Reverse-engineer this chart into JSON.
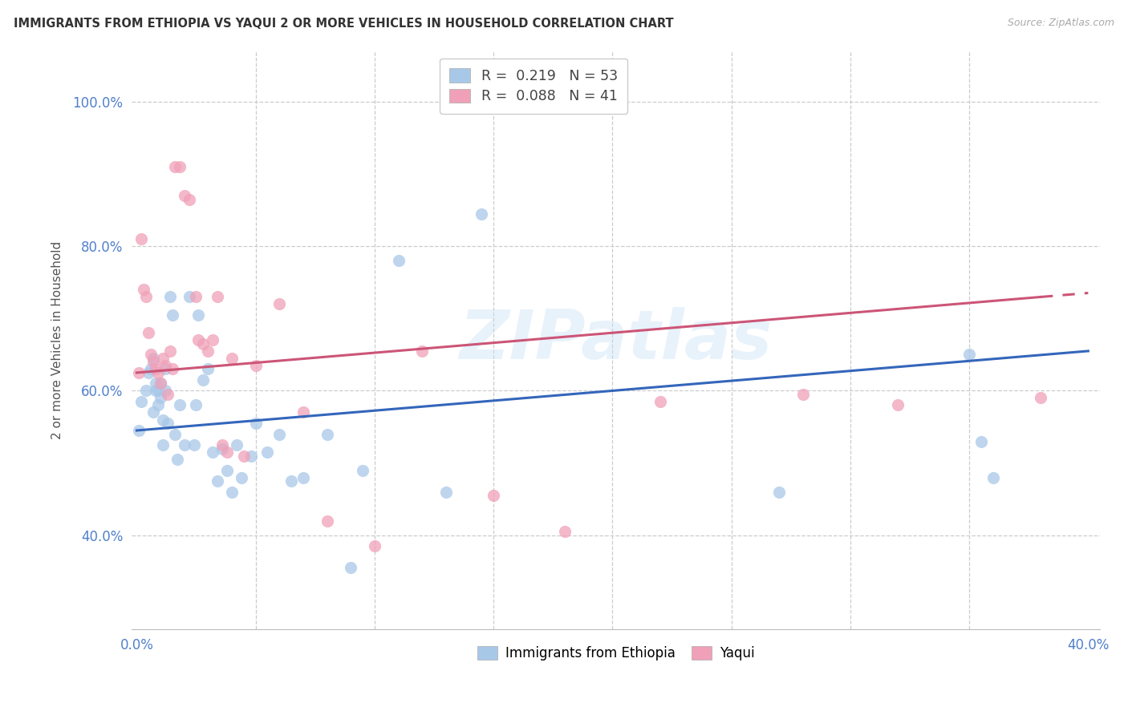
{
  "title": "IMMIGRANTS FROM ETHIOPIA VS YAQUI 2 OR MORE VEHICLES IN HOUSEHOLD CORRELATION CHART",
  "source": "Source: ZipAtlas.com",
  "ylabel": "2 or more Vehicles in Household",
  "xlim": [
    -0.002,
    0.405
  ],
  "ylim": [
    0.27,
    1.07
  ],
  "yticks": [
    0.4,
    0.6,
    0.8,
    1.0
  ],
  "xtick_positions": [
    0.0,
    0.4
  ],
  "xtick_labels": [
    "0.0%",
    "40.0%"
  ],
  "ytick_labels": [
    "40.0%",
    "60.0%",
    "80.0%",
    "100.0%"
  ],
  "label1": "Immigrants from Ethiopia",
  "label2": "Yaqui",
  "blue_color": "#a8c8e8",
  "pink_color": "#f0a0b8",
  "blue_line_color": "#3366bb",
  "pink_line_color": "#cc5577",
  "watermark": "ZIPatlas",
  "vertical_grid_x": [
    0.05,
    0.1,
    0.15,
    0.2,
    0.25,
    0.3,
    0.35
  ],
  "ethiopia_x": [
    0.001,
    0.002,
    0.004,
    0.005,
    0.006,
    0.007,
    0.007,
    0.008,
    0.008,
    0.009,
    0.009,
    0.01,
    0.01,
    0.011,
    0.011,
    0.012,
    0.012,
    0.013,
    0.014,
    0.015,
    0.016,
    0.017,
    0.018,
    0.02,
    0.022,
    0.024,
    0.025,
    0.026,
    0.028,
    0.03,
    0.032,
    0.034,
    0.036,
    0.038,
    0.04,
    0.042,
    0.044,
    0.048,
    0.05,
    0.055,
    0.06,
    0.065,
    0.07,
    0.08,
    0.09,
    0.095,
    0.11,
    0.13,
    0.145,
    0.27,
    0.35,
    0.355,
    0.36
  ],
  "ethiopia_y": [
    0.545,
    0.585,
    0.6,
    0.625,
    0.63,
    0.57,
    0.645,
    0.61,
    0.6,
    0.58,
    0.6,
    0.59,
    0.61,
    0.56,
    0.525,
    0.63,
    0.6,
    0.555,
    0.73,
    0.705,
    0.54,
    0.505,
    0.58,
    0.525,
    0.73,
    0.525,
    0.58,
    0.705,
    0.615,
    0.63,
    0.515,
    0.475,
    0.52,
    0.49,
    0.46,
    0.525,
    0.48,
    0.51,
    0.555,
    0.515,
    0.54,
    0.475,
    0.48,
    0.54,
    0.355,
    0.49,
    0.78,
    0.46,
    0.845,
    0.46,
    0.65,
    0.53,
    0.48
  ],
  "yaqui_x": [
    0.001,
    0.002,
    0.003,
    0.004,
    0.005,
    0.006,
    0.007,
    0.008,
    0.009,
    0.01,
    0.011,
    0.012,
    0.013,
    0.014,
    0.015,
    0.016,
    0.018,
    0.02,
    0.022,
    0.025,
    0.026,
    0.028,
    0.03,
    0.032,
    0.034,
    0.036,
    0.038,
    0.04,
    0.045,
    0.05,
    0.06,
    0.07,
    0.08,
    0.1,
    0.12,
    0.15,
    0.18,
    0.22,
    0.28,
    0.32,
    0.38
  ],
  "yaqui_y": [
    0.625,
    0.81,
    0.74,
    0.73,
    0.68,
    0.65,
    0.64,
    0.63,
    0.625,
    0.61,
    0.645,
    0.635,
    0.595,
    0.655,
    0.63,
    0.91,
    0.91,
    0.87,
    0.865,
    0.73,
    0.67,
    0.665,
    0.655,
    0.67,
    0.73,
    0.525,
    0.515,
    0.645,
    0.51,
    0.635,
    0.72,
    0.57,
    0.42,
    0.385,
    0.655,
    0.455,
    0.405,
    0.585,
    0.595,
    0.58,
    0.59
  ],
  "legend_line1": "R =  0.219   N = 53",
  "legend_line2": "R =  0.088   N = 41"
}
